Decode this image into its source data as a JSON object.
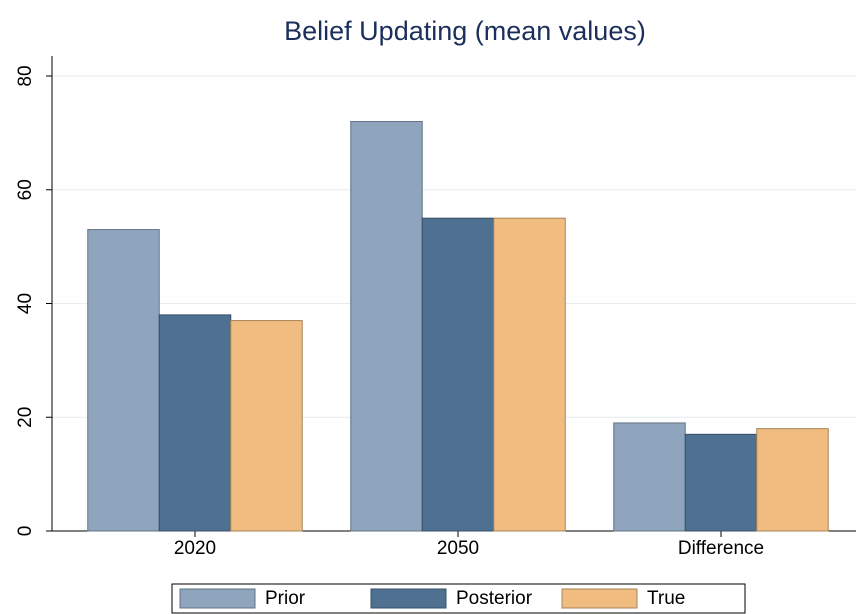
{
  "chart_data": {
    "type": "bar",
    "title": "Belief Updating (mean values)",
    "categories": [
      "2020",
      "2050",
      "Difference"
    ],
    "series": [
      {
        "name": "Prior",
        "color": "#8ea5bd",
        "values": [
          53,
          72,
          19
        ]
      },
      {
        "name": "Posterior",
        "color": "#4f7191",
        "values": [
          38,
          55,
          17
        ]
      },
      {
        "name": "True",
        "color": "#f0bc80",
        "values": [
          37,
          55,
          18
        ]
      }
    ],
    "ylim": [
      0,
      80
    ],
    "yticks": [
      0,
      20,
      40,
      60,
      80
    ],
    "grid": true,
    "legend": "bottom"
  }
}
